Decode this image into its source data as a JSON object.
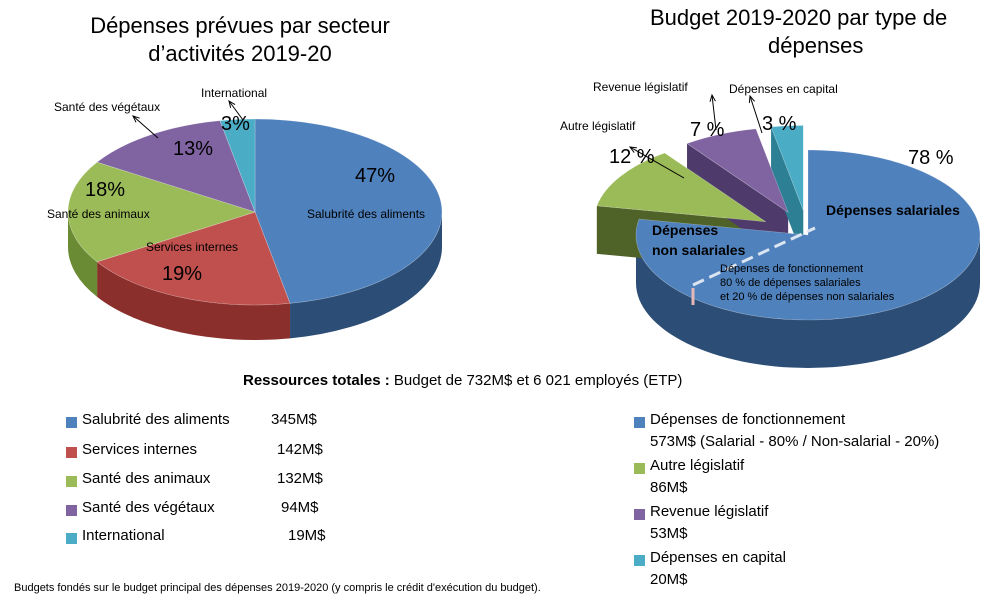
{
  "left_chart_title_line1": "Dépenses prévues par secteur",
  "left_chart_title_line2": "d’activités 2019-20",
  "right_chart_title_line1": "Budget 2019-2020 par type de",
  "right_chart_title_line2": "dépenses",
  "summary_label": "Ressources totales :",
  "summary_text": "Budget de 732M$ et 6 021 employés (ETP)",
  "footnote": "Budgets fondés sur le budget principal des dépenses 2019-2020 (y compris le crédit d'exécution du budget).",
  "chart_data": [
    {
      "type": "pie",
      "title": "Dépenses prévues par secteur d’activités 2019-20",
      "categories": [
        "Salubrité des aliments",
        "Services internes",
        "Santé des animaux",
        "Santé des végétaux",
        "International"
      ],
      "values": [
        47,
        19,
        18,
        13,
        3
      ],
      "value_labels": [
        "47%",
        "19%",
        "18%",
        "13%",
        "3%"
      ],
      "amounts": [
        "345M$",
        "142M$",
        "132M$",
        "94M$",
        "19M$"
      ],
      "colors": [
        "#4f81bd",
        "#c0504d",
        "#9bbb59",
        "#8064a2",
        "#4bacc6"
      ],
      "side_colors": [
        "#2c4d75",
        "#8a2f2c",
        "#6b8a34",
        "#4e3b6b",
        "#2d7f94"
      ]
    },
    {
      "type": "pie",
      "title": "Budget 2019-2020 par type de dépenses",
      "categories": [
        "Dépenses de fonctionnement",
        "Autre législatif",
        "Revenue législatif",
        "Dépenses en capital"
      ],
      "values": [
        78,
        12,
        7,
        3
      ],
      "value_labels": [
        "78 %",
        "12 %",
        "7 %",
        "3 %"
      ],
      "amounts": [
        "573M$",
        "86M$",
        "53M$",
        "20M$"
      ],
      "legend_details": [
        "573M$ (Salarial - 80% / Non-salarial - 20%)",
        "86M$",
        "53M$",
        "20M$"
      ],
      "colors": [
        "#4f81bd",
        "#9bbb59",
        "#8064a2",
        "#4bacc6"
      ],
      "side_colors": [
        "#2c4d75",
        "#4f6228",
        "#4e3b6b",
        "#2d7f94"
      ],
      "annotations": {
        "salary": "Dépenses salariales",
        "non_salary_line1": "Dépenses",
        "non_salary_line2": "non salariales",
        "fonct_line1": "Dépenses de fonctionnement",
        "fonct_line2": "80 % de dépenses salariales",
        "fonct_line3": "et 20 % de dépenses non salariales"
      }
    }
  ]
}
